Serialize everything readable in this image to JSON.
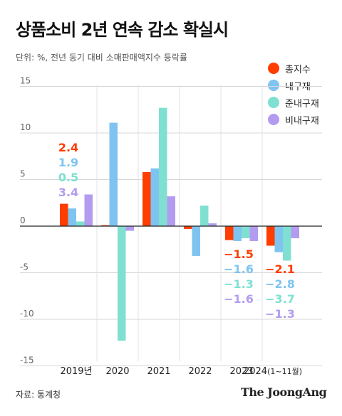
{
  "title": "상품소비 2년 연속 감소 확실시",
  "unit_note": "단위: %, 전년 동기 대비 소매판매액지수 등락률",
  "source": "자료: 통계청",
  "brand": "The JoongAng",
  "colors": {
    "total": "#ff3d00",
    "durable": "#7fc4f0",
    "semidurable": "#7fe0d2",
    "nondurable": "#b39cf0"
  },
  "chart_data": {
    "type": "bar",
    "categories": [
      "2019년",
      "2020",
      "2021",
      "2022",
      "2023",
      "2024"
    ],
    "last_category_suffix": "(1~11월)",
    "ylim": [
      -15,
      15
    ],
    "yticks": [
      "15",
      "10",
      "5",
      "0",
      "-5",
      "-10",
      "-15"
    ],
    "series": [
      {
        "name": "총지수",
        "values": [
          2.4,
          0.1,
          5.8,
          -0.3,
          -1.5,
          -2.1
        ]
      },
      {
        "name": "내구재",
        "values": [
          1.9,
          11.1,
          6.2,
          -3.2,
          -1.6,
          -2.8
        ]
      },
      {
        "name": "준내구재",
        "values": [
          0.5,
          -12.3,
          12.7,
          2.2,
          -1.3,
          -3.7
        ]
      },
      {
        "name": "비내구재",
        "values": [
          3.4,
          -0.5,
          3.2,
          0.3,
          -1.6,
          -1.3
        ]
      }
    ],
    "annotations": [
      {
        "category": "2019년",
        "labels": [
          "2.4",
          "1.9",
          "0.5",
          "3.4"
        ]
      },
      {
        "category": "2023",
        "labels": [
          "−1.5",
          "−1.6",
          "−1.3",
          "−1.6"
        ]
      },
      {
        "category": "2024",
        "labels": [
          "−2.1",
          "−2.8",
          "−3.7",
          "−1.3"
        ]
      }
    ]
  }
}
